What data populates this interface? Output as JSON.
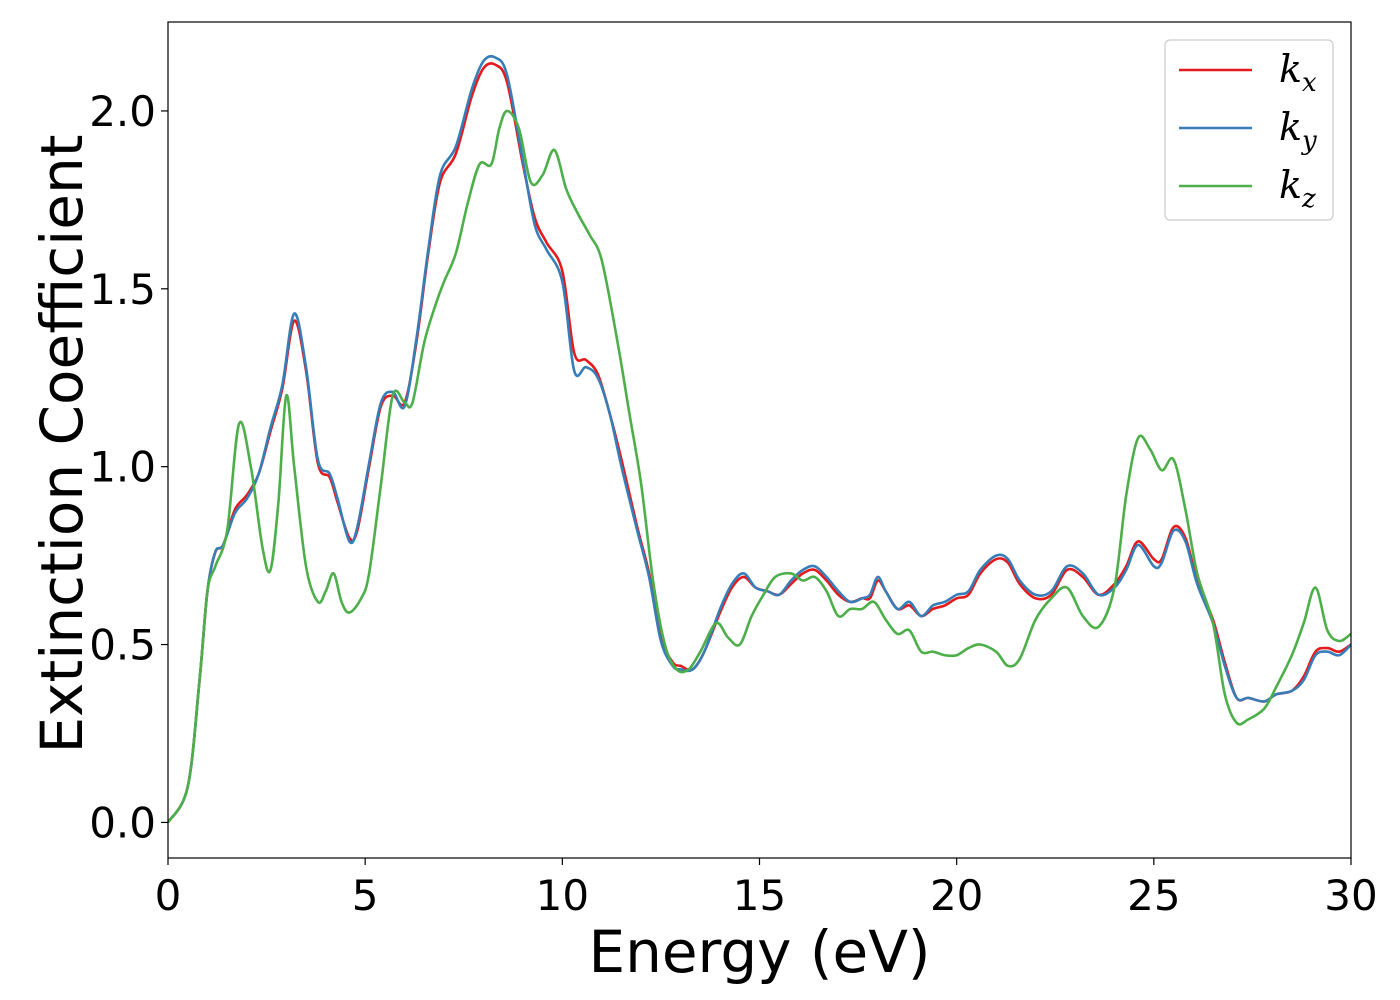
{
  "chart_data": {
    "type": "line",
    "title": "",
    "xlabel": "Energy (eV)",
    "ylabel": "Extinction Coefficient",
    "xlim": [
      0,
      30
    ],
    "ylim": [
      -0.1,
      2.25
    ],
    "xticks": [
      0,
      5,
      10,
      15,
      20,
      25,
      30
    ],
    "yticks": [
      0.0,
      0.5,
      1.0,
      1.5,
      2.0
    ],
    "xtick_labels": [
      "0",
      "5",
      "10",
      "15",
      "20",
      "25",
      "30"
    ],
    "ytick_labels": [
      "0.0",
      "0.5",
      "1.0",
      "1.5",
      "2.0"
    ],
    "grid": false,
    "legend_position": "top-right",
    "series": [
      {
        "name": "k_x",
        "label_base": "k",
        "label_sub": "x",
        "color": "#e41a1c",
        "x": [
          0,
          0.5,
          0.8,
          1.0,
          1.2,
          1.4,
          1.7,
          2.0,
          2.3,
          2.6,
          2.9,
          3.2,
          3.5,
          3.8,
          4.1,
          4.3,
          4.6,
          4.8,
          5.1,
          5.4,
          5.7,
          6.0,
          6.3,
          6.6,
          6.9,
          7.3,
          7.7,
          8.0,
          8.3,
          8.6,
          9.0,
          9.3,
          9.6,
          10.0,
          10.3,
          10.6,
          10.9,
          11.2,
          11.5,
          11.9,
          12.2,
          12.5,
          12.8,
          13.0,
          13.3,
          13.6,
          14.0,
          14.3,
          14.6,
          14.9,
          15.2,
          15.5,
          15.8,
          16.1,
          16.4,
          16.7,
          17.0,
          17.3,
          17.6,
          17.8,
          18.0,
          18.2,
          18.5,
          18.8,
          19.1,
          19.4,
          19.7,
          20.0,
          20.3,
          20.6,
          21.0,
          21.3,
          21.6,
          22.0,
          22.4,
          22.8,
          23.2,
          23.6,
          24.0,
          24.3,
          24.6,
          25.0,
          25.2,
          25.5,
          25.8,
          26.1,
          26.5,
          26.8,
          27.1,
          27.4,
          27.8,
          28.1,
          28.5,
          28.8,
          29.1,
          29.4,
          29.7,
          30.0
        ],
        "y": [
          0,
          0.1,
          0.4,
          0.65,
          0.76,
          0.78,
          0.88,
          0.92,
          0.98,
          1.1,
          1.22,
          1.41,
          1.27,
          1.01,
          0.97,
          0.9,
          0.8,
          0.82,
          1.0,
          1.17,
          1.2,
          1.18,
          1.35,
          1.6,
          1.8,
          1.88,
          2.04,
          2.12,
          2.13,
          2.08,
          1.85,
          1.7,
          1.63,
          1.55,
          1.32,
          1.3,
          1.26,
          1.15,
          1.02,
          0.83,
          0.7,
          0.52,
          0.45,
          0.44,
          0.43,
          0.48,
          0.59,
          0.66,
          0.69,
          0.66,
          0.65,
          0.64,
          0.67,
          0.7,
          0.71,
          0.68,
          0.64,
          0.62,
          0.63,
          0.63,
          0.68,
          0.65,
          0.6,
          0.61,
          0.58,
          0.6,
          0.61,
          0.63,
          0.64,
          0.7,
          0.74,
          0.73,
          0.67,
          0.63,
          0.64,
          0.71,
          0.69,
          0.64,
          0.67,
          0.72,
          0.79,
          0.74,
          0.74,
          0.83,
          0.8,
          0.68,
          0.57,
          0.45,
          0.35,
          0.35,
          0.34,
          0.36,
          0.37,
          0.41,
          0.48,
          0.49,
          0.48,
          0.5
        ]
      },
      {
        "name": "k_y",
        "label_base": "k",
        "label_sub": "y",
        "color": "#377eb8",
        "x": [
          0,
          0.5,
          0.8,
          1.0,
          1.2,
          1.4,
          1.7,
          2.0,
          2.3,
          2.6,
          2.9,
          3.2,
          3.5,
          3.8,
          4.1,
          4.3,
          4.6,
          4.8,
          5.1,
          5.4,
          5.7,
          6.0,
          6.3,
          6.6,
          6.9,
          7.3,
          7.7,
          8.0,
          8.3,
          8.6,
          9.0,
          9.3,
          9.6,
          10.0,
          10.3,
          10.6,
          10.9,
          11.2,
          11.5,
          11.9,
          12.2,
          12.5,
          12.8,
          13.0,
          13.3,
          13.6,
          14.0,
          14.3,
          14.6,
          14.9,
          15.2,
          15.5,
          15.8,
          16.1,
          16.4,
          16.7,
          17.0,
          17.3,
          17.6,
          17.8,
          18.0,
          18.2,
          18.5,
          18.8,
          19.1,
          19.4,
          19.7,
          20.0,
          20.3,
          20.6,
          21.0,
          21.3,
          21.6,
          22.0,
          22.4,
          22.8,
          23.2,
          23.6,
          24.0,
          24.3,
          24.6,
          25.0,
          25.2,
          25.5,
          25.8,
          26.1,
          26.5,
          26.8,
          27.1,
          27.4,
          27.8,
          28.1,
          28.5,
          28.8,
          29.1,
          29.4,
          29.7,
          30.0
        ],
        "y": [
          0,
          0.1,
          0.4,
          0.65,
          0.76,
          0.78,
          0.87,
          0.91,
          0.98,
          1.11,
          1.23,
          1.43,
          1.28,
          1.02,
          0.98,
          0.91,
          0.79,
          0.83,
          1.01,
          1.18,
          1.21,
          1.17,
          1.36,
          1.61,
          1.82,
          1.9,
          2.06,
          2.14,
          2.15,
          2.1,
          1.86,
          1.68,
          1.61,
          1.52,
          1.27,
          1.28,
          1.25,
          1.15,
          1.0,
          0.82,
          0.69,
          0.51,
          0.44,
          0.43,
          0.43,
          0.48,
          0.6,
          0.67,
          0.7,
          0.66,
          0.65,
          0.64,
          0.68,
          0.71,
          0.72,
          0.69,
          0.65,
          0.62,
          0.63,
          0.64,
          0.69,
          0.65,
          0.6,
          0.62,
          0.58,
          0.61,
          0.62,
          0.64,
          0.65,
          0.71,
          0.75,
          0.74,
          0.68,
          0.64,
          0.65,
          0.72,
          0.7,
          0.64,
          0.66,
          0.71,
          0.78,
          0.72,
          0.73,
          0.82,
          0.79,
          0.67,
          0.56,
          0.44,
          0.35,
          0.35,
          0.34,
          0.36,
          0.37,
          0.4,
          0.47,
          0.48,
          0.47,
          0.5
        ]
      },
      {
        "name": "k_z",
        "label_base": "k",
        "label_sub": "z",
        "color": "#4daf4a",
        "x": [
          0,
          0.5,
          0.8,
          1.0,
          1.2,
          1.5,
          1.8,
          2.1,
          2.4,
          2.6,
          2.8,
          3.0,
          3.2,
          3.5,
          3.8,
          4.0,
          4.2,
          4.4,
          4.6,
          4.9,
          5.1,
          5.4,
          5.7,
          6.0,
          6.2,
          6.5,
          6.8,
          7.0,
          7.3,
          7.6,
          7.9,
          8.2,
          8.4,
          8.6,
          8.9,
          9.2,
          9.5,
          9.8,
          10.1,
          10.4,
          10.7,
          11.0,
          11.4,
          11.7,
          12.0,
          12.3,
          12.6,
          12.9,
          13.2,
          13.5,
          13.9,
          14.2,
          14.5,
          14.8,
          15.1,
          15.4,
          15.8,
          16.1,
          16.4,
          16.7,
          17.0,
          17.3,
          17.6,
          17.9,
          18.2,
          18.5,
          18.8,
          19.1,
          19.4,
          19.7,
          20.0,
          20.3,
          20.6,
          21.0,
          21.3,
          21.6,
          22.0,
          22.4,
          22.8,
          23.2,
          23.6,
          24.0,
          24.3,
          24.6,
          24.9,
          25.2,
          25.5,
          25.8,
          26.1,
          26.5,
          26.8,
          27.1,
          27.4,
          27.8,
          28.1,
          28.5,
          28.8,
          29.1,
          29.4,
          29.7,
          30.0
        ],
        "y": [
          0,
          0.1,
          0.4,
          0.65,
          0.72,
          0.82,
          1.12,
          1.0,
          0.77,
          0.71,
          0.9,
          1.2,
          1.0,
          0.72,
          0.62,
          0.65,
          0.7,
          0.62,
          0.59,
          0.63,
          0.7,
          0.95,
          1.2,
          1.18,
          1.18,
          1.35,
          1.46,
          1.52,
          1.6,
          1.74,
          1.85,
          1.85,
          1.95,
          2.0,
          1.95,
          1.8,
          1.82,
          1.89,
          1.78,
          1.71,
          1.65,
          1.58,
          1.35,
          1.15,
          0.95,
          0.68,
          0.5,
          0.43,
          0.43,
          0.48,
          0.56,
          0.52,
          0.5,
          0.58,
          0.64,
          0.69,
          0.7,
          0.68,
          0.69,
          0.65,
          0.58,
          0.6,
          0.6,
          0.62,
          0.57,
          0.53,
          0.54,
          0.48,
          0.48,
          0.47,
          0.47,
          0.49,
          0.5,
          0.48,
          0.44,
          0.46,
          0.57,
          0.63,
          0.66,
          0.58,
          0.55,
          0.66,
          0.92,
          1.08,
          1.05,
          0.99,
          1.02,
          0.88,
          0.7,
          0.56,
          0.36,
          0.28,
          0.29,
          0.32,
          0.38,
          0.47,
          0.56,
          0.66,
          0.54,
          0.51,
          0.53
        ]
      }
    ]
  }
}
